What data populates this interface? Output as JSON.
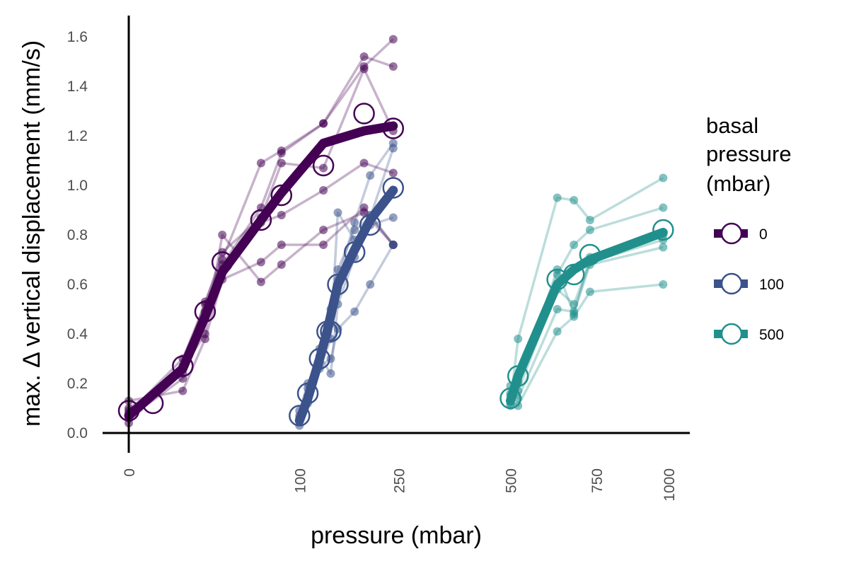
{
  "chart_data": {
    "type": "line",
    "xlabel": "pressure (mbar)",
    "ylabel": "max. Δ vertical displacement (mm/s)",
    "xlim": [
      -5,
      1000
    ],
    "ylim": [
      0,
      1.6
    ],
    "x_ticks": [
      "0",
      "100",
      "250",
      "500",
      "750",
      "1000"
    ],
    "x_tick_values": [
      0,
      100,
      250,
      500,
      750,
      1000
    ],
    "y_ticks": [
      "0.0",
      "0.2",
      "0.4",
      "0.6",
      "0.8",
      "1.0",
      "1.2",
      "1.4",
      "1.6"
    ],
    "y_tick_values": [
      0,
      0.2,
      0.4,
      0.6,
      0.8,
      1.0,
      1.2,
      1.4,
      1.6
    ],
    "x_scale": "sqrt",
    "grid": false,
    "legend": {
      "title": "basal pressure (mbar)",
      "title_lines": [
        "basal",
        "pressure",
        "(mbar)"
      ],
      "placement": "right",
      "entries": [
        "0",
        "100",
        "500"
      ]
    },
    "series": [
      {
        "name": "0",
        "color": "#440154",
        "mean": [
          [
            0,
            0.09
          ],
          [
            2,
            0.12
          ],
          [
            10,
            0.27
          ],
          [
            20,
            0.49
          ],
          [
            30,
            0.69
          ],
          [
            60,
            0.86
          ],
          [
            80,
            0.96
          ],
          [
            130,
            1.08
          ],
          [
            190,
            1.29
          ],
          [
            240,
            1.23
          ]
        ],
        "mean_line": [
          [
            0,
            0.07
          ],
          [
            10,
            0.26
          ],
          [
            20,
            0.47
          ],
          [
            30,
            0.65
          ],
          [
            60,
            0.86
          ],
          [
            80,
            0.97
          ],
          [
            130,
            1.17
          ],
          [
            190,
            1.22
          ],
          [
            240,
            1.24
          ]
        ],
        "replicates": [
          [
            [
              0,
              0.04
            ],
            [
              10,
              0.27
            ],
            [
              20,
              0.53
            ],
            [
              30,
              0.7
            ],
            [
              60,
              1.09
            ],
            [
              80,
              1.14
            ],
            [
              130,
              1.25
            ],
            [
              190,
              1.48
            ],
            [
              240,
              1.59
            ]
          ],
          [
            [
              0,
              0.06
            ],
            [
              10,
              0.22
            ],
            [
              20,
              0.49
            ],
            [
              30,
              0.68
            ],
            [
              60,
              0.91
            ],
            [
              80,
              1.13
            ],
            [
              130,
              1.25
            ],
            [
              190,
              1.52
            ],
            [
              240,
              1.48
            ]
          ],
          [
            [
              0,
              0.08
            ],
            [
              10,
              0.3
            ],
            [
              20,
              0.52
            ],
            [
              30,
              0.73
            ],
            [
              60,
              0.87
            ],
            [
              80,
              1.09
            ],
            [
              130,
              1.07
            ],
            [
              190,
              1.47
            ],
            [
              240,
              1.22
            ]
          ],
          [
            [
              0,
              0.1
            ],
            [
              10,
              0.24
            ],
            [
              20,
              0.46
            ],
            [
              30,
              0.66
            ],
            [
              60,
              0.85
            ],
            [
              80,
              0.88
            ],
            [
              130,
              0.98
            ],
            [
              190,
              1.09
            ],
            [
              240,
              1.05
            ]
          ],
          [
            [
              0,
              0.13
            ],
            [
              10,
              0.17
            ],
            [
              20,
              0.38
            ],
            [
              30,
              0.62
            ],
            [
              60,
              0.69
            ],
            [
              80,
              0.76
            ],
            [
              130,
              0.76
            ],
            [
              190,
              0.91
            ],
            [
              240,
              0.76
            ]
          ],
          [
            [
              0,
              0.09
            ],
            [
              10,
              0.26
            ],
            [
              20,
              0.4
            ],
            [
              30,
              0.8
            ],
            [
              60,
              0.61
            ],
            [
              80,
              0.68
            ],
            [
              130,
              0.82
            ],
            [
              190,
              0.89
            ],
            [
              240,
              0.76
            ]
          ]
        ]
      },
      {
        "name": "100",
        "color": "#3b528b",
        "mean": [
          [
            100,
            0.07
          ],
          [
            110,
            0.16
          ],
          [
            125,
            0.3
          ],
          [
            135,
            0.41
          ],
          [
            140,
            0.41
          ],
          [
            150,
            0.6
          ],
          [
            175,
            0.73
          ],
          [
            200,
            0.84
          ],
          [
            240,
            0.99
          ]
        ],
        "mean_line": [
          [
            100,
            0.05
          ],
          [
            110,
            0.14
          ],
          [
            125,
            0.3
          ],
          [
            135,
            0.41
          ],
          [
            150,
            0.6
          ],
          [
            175,
            0.74
          ],
          [
            200,
            0.86
          ],
          [
            240,
            0.98
          ]
        ],
        "replicates": [
          [
            [
              100,
              0.03
            ],
            [
              110,
              0.13
            ],
            [
              125,
              0.29
            ],
            [
              140,
              0.44
            ],
            [
              150,
              0.62
            ],
            [
              175,
              0.85
            ],
            [
              200,
              1.04
            ],
            [
              240,
              1.17
            ]
          ],
          [
            [
              100,
              0.05
            ],
            [
              110,
              0.18
            ],
            [
              125,
              0.34
            ],
            [
              140,
              0.5
            ],
            [
              150,
              0.66
            ],
            [
              175,
              0.82
            ],
            [
              200,
              0.87
            ],
            [
              240,
              1.15
            ]
          ],
          [
            [
              100,
              0.07
            ],
            [
              110,
              0.15
            ],
            [
              125,
              0.26
            ],
            [
              140,
              0.38
            ],
            [
              150,
              0.89
            ],
            [
              175,
              0.78
            ],
            [
              200,
              0.84
            ],
            [
              240,
              0.87
            ]
          ],
          [
            [
              100,
              0.09
            ],
            [
              110,
              0.2
            ],
            [
              125,
              0.31
            ],
            [
              140,
              0.24
            ],
            [
              150,
              0.52
            ],
            [
              175,
              0.71
            ],
            [
              200,
              0.88
            ],
            [
              240,
              0.76
            ]
          ],
          [
            [
              100,
              0.06
            ],
            [
              110,
              0.12
            ],
            [
              125,
              0.27
            ],
            [
              140,
              0.3
            ],
            [
              150,
              0.42
            ],
            [
              175,
              0.49
            ],
            [
              200,
              0.6
            ],
            [
              240,
              0.76
            ]
          ]
        ]
      },
      {
        "name": "500",
        "color": "#21908c",
        "mean": [
          [
            500,
            0.14
          ],
          [
            520,
            0.23
          ],
          [
            630,
            0.62
          ],
          [
            680,
            0.64
          ],
          [
            730,
            0.72
          ],
          [
            980,
            0.82
          ]
        ],
        "mean_line": [
          [
            500,
            0.13
          ],
          [
            520,
            0.23
          ],
          [
            630,
            0.6
          ],
          [
            680,
            0.66
          ],
          [
            730,
            0.7
          ],
          [
            980,
            0.81
          ]
        ],
        "replicates": [
          [
            [
              500,
              0.12
            ],
            [
              520,
              0.38
            ],
            [
              630,
              0.95
            ],
            [
              680,
              0.94
            ],
            [
              730,
              0.86
            ],
            [
              980,
              1.03
            ]
          ],
          [
            [
              500,
              0.15
            ],
            [
              520,
              0.21
            ],
            [
              630,
              0.64
            ],
            [
              680,
              0.76
            ],
            [
              730,
              0.82
            ],
            [
              980,
              0.91
            ]
          ],
          [
            [
              500,
              0.11
            ],
            [
              520,
              0.17
            ],
            [
              630,
              0.58
            ],
            [
              680,
              0.52
            ],
            [
              730,
              0.69
            ],
            [
              980,
              0.78
            ]
          ],
          [
            [
              500,
              0.19
            ],
            [
              520,
              0.14
            ],
            [
              630,
              0.5
            ],
            [
              680,
              0.49
            ],
            [
              730,
              0.68
            ],
            [
              980,
              0.75
            ]
          ],
          [
            [
              500,
              0.13
            ],
            [
              520,
              0.11
            ],
            [
              630,
              0.41
            ],
            [
              680,
              0.47
            ],
            [
              730,
              0.57
            ],
            [
              980,
              0.6
            ]
          ],
          [
            [
              500,
              0.16
            ],
            [
              520,
              0.2
            ],
            [
              630,
              0.66
            ],
            [
              680,
              0.48
            ],
            [
              730,
              0.71
            ],
            [
              980,
              0.8
            ]
          ]
        ]
      }
    ]
  }
}
